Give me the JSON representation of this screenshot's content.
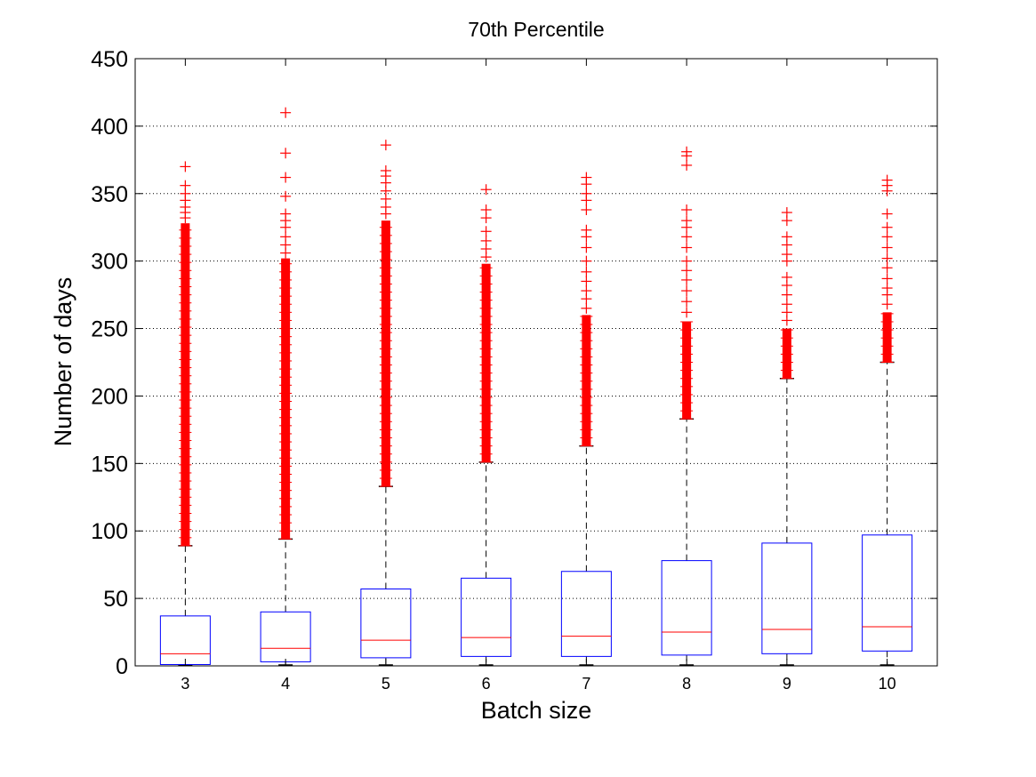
{
  "chart_data": {
    "type": "box",
    "title": "70th Percentile",
    "xlabel": "Batch size",
    "ylabel": "Number of days",
    "ylim": [
      0,
      450
    ],
    "yticks": [
      0,
      50,
      100,
      150,
      200,
      250,
      300,
      350,
      400,
      450
    ],
    "grid": "y-dotted",
    "categories": [
      "3",
      "4",
      "5",
      "6",
      "7",
      "8",
      "9",
      "10"
    ],
    "boxes": [
      {
        "category": "3",
        "min": 0,
        "q1": 1,
        "median": 9,
        "q3": 37,
        "whisker_high": 89,
        "outliers_dense_from": 89,
        "outliers_dense_to": 328,
        "outliers_sparse": [
          332,
          336,
          340,
          345,
          350,
          356,
          370
        ]
      },
      {
        "category": "4",
        "min": 0,
        "q1": 3,
        "median": 13,
        "q3": 40,
        "whisker_high": 94,
        "outliers_dense_from": 94,
        "outliers_dense_to": 302,
        "outliers_sparse": [
          306,
          312,
          318,
          325,
          330,
          335,
          348,
          362,
          380,
          410
        ]
      },
      {
        "category": "5",
        "min": 0,
        "q1": 6,
        "median": 19,
        "q3": 57,
        "whisker_high": 133,
        "outliers_dense_from": 133,
        "outliers_dense_to": 330,
        "outliers_sparse": [
          335,
          340,
          346,
          352,
          358,
          363,
          367,
          386
        ]
      },
      {
        "category": "6",
        "min": 0,
        "q1": 7,
        "median": 21,
        "q3": 65,
        "whisker_high": 151,
        "outliers_dense_from": 151,
        "outliers_dense_to": 298,
        "outliers_sparse": [
          303,
          309,
          315,
          322,
          332,
          338,
          353
        ]
      },
      {
        "category": "7",
        "min": 0,
        "q1": 7,
        "median": 22,
        "q3": 70,
        "whisker_high": 163,
        "outliers_dense_from": 163,
        "outliers_dense_to": 260,
        "outliers_sparse": [
          265,
          272,
          278,
          285,
          292,
          300,
          310,
          318,
          323,
          338,
          345,
          350,
          357,
          362
        ]
      },
      {
        "category": "8",
        "min": 0,
        "q1": 8,
        "median": 25,
        "q3": 78,
        "whisker_high": 183,
        "outliers_dense_from": 183,
        "outliers_dense_to": 255,
        "outliers_sparse": [
          262,
          270,
          278,
          286,
          293,
          300,
          310,
          318,
          325,
          330,
          338,
          371,
          378,
          381
        ]
      },
      {
        "category": "9",
        "min": 0,
        "q1": 9,
        "median": 27,
        "q3": 91,
        "whisker_high": 213,
        "outliers_dense_from": 213,
        "outliers_dense_to": 250,
        "outliers_sparse": [
          256,
          262,
          268,
          275,
          282,
          288,
          300,
          305,
          312,
          318,
          330,
          336
        ]
      },
      {
        "category": "10",
        "min": 0,
        "q1": 11,
        "median": 29,
        "q3": 97,
        "whisker_high": 225,
        "outliers_dense_from": 225,
        "outliers_dense_to": 262,
        "outliers_sparse": [
          268,
          275,
          280,
          287,
          295,
          302,
          310,
          318,
          325,
          335,
          352,
          356,
          360
        ]
      }
    ],
    "colors": {
      "box": "#0000ff",
      "median": "#ff0000",
      "outlier": "#ff0000",
      "whisker": "#000000",
      "grid": "#000000"
    }
  }
}
